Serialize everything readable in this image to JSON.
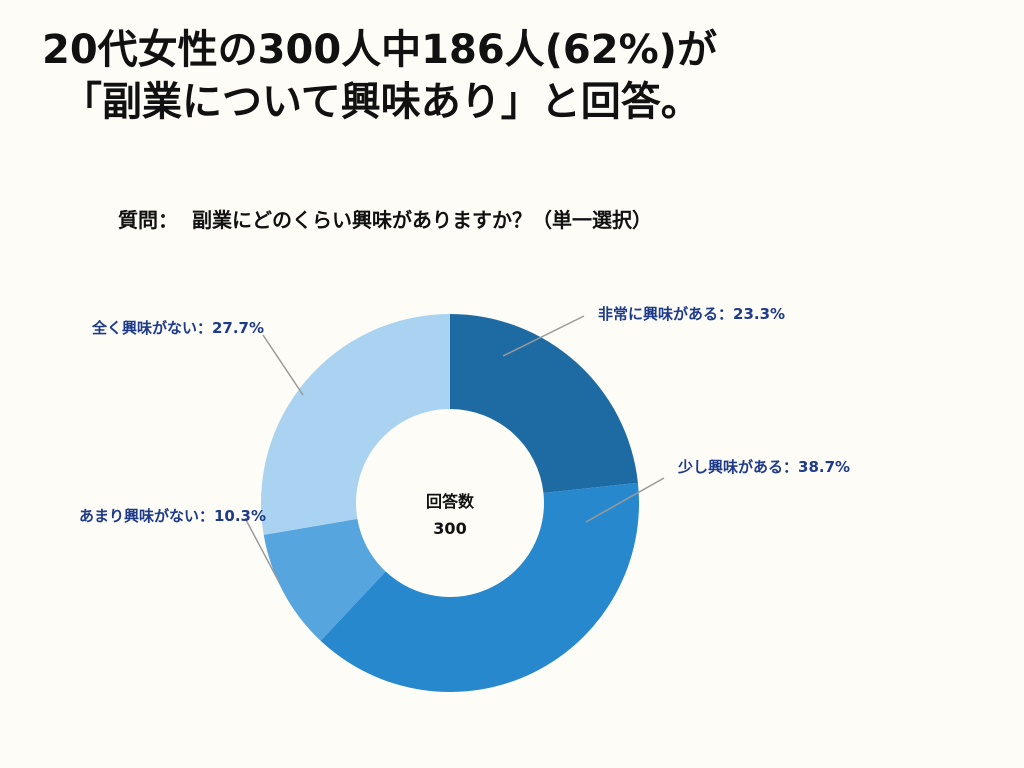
{
  "headline": {
    "line1": "20代女性の300人中186人(62%)が",
    "line2": "「副業について興味あり」と回答。"
  },
  "question": {
    "prefix": "質問：",
    "text": "副業にどのくらい興味がありますか？（単一選択）"
  },
  "chart_data": {
    "type": "pie",
    "variant": "donut",
    "title": "副業にどのくらい興味がありますか？（単一選択）",
    "center_label": "回答数",
    "center_value": "300",
    "slices": [
      {
        "name": "非常に興味がある",
        "value": 23.3,
        "label": "非常に興味がある：23.3%",
        "color": "#1e6ba4"
      },
      {
        "name": "少し興味がある",
        "value": 38.7,
        "label": "少し興味がある：38.7%",
        "color": "#2788cd"
      },
      {
        "name": "あまり興味がない",
        "value": 10.3,
        "label": "あまり興味がない：10.3%",
        "color": "#56a5df"
      },
      {
        "name": "全く興味がない",
        "value": 27.7,
        "label": "全く興味がない：27.7%",
        "color": "#a9d3f0"
      }
    ],
    "label_color": "#1e3a8a",
    "leader_color": "#9a9a9a"
  }
}
